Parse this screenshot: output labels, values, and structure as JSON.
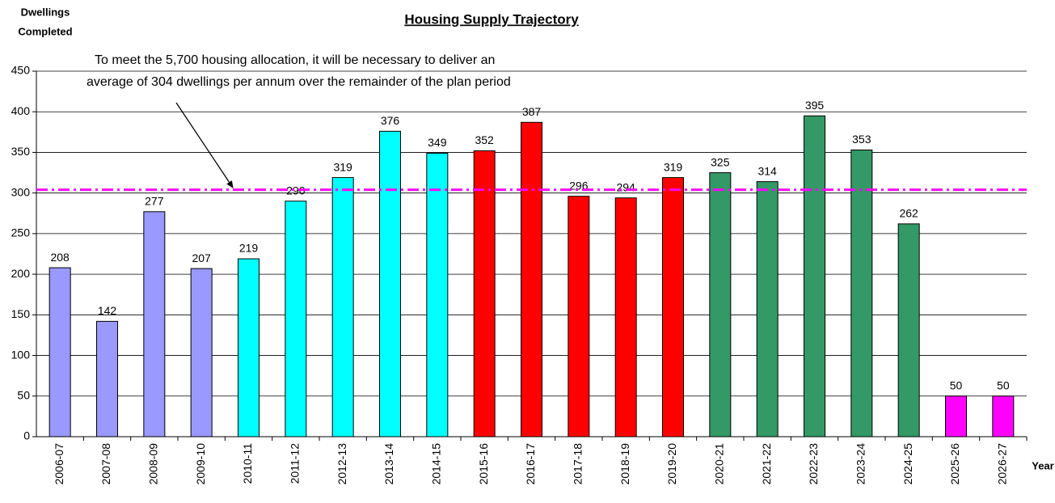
{
  "chart_data": {
    "type": "bar",
    "title": "Housing Supply Trajectory",
    "ylabel": [
      "Dwellings",
      "Completed"
    ],
    "xlabel": "Year",
    "annotation": [
      "To meet the 5,700 housing allocation, it will be necessary to deliver an",
      "average of 304 dwellings per annum over the remainder of the plan period"
    ],
    "categories": [
      "2006-07",
      "2007-08",
      "2008-09",
      "2009-10",
      "2010-11",
      "2011-12",
      "2012-13",
      "2013-14",
      "2014-15",
      "2015-16",
      "2016-17",
      "2017-18",
      "2018-19",
      "2019-20",
      "2020-21",
      "2021-22",
      "2022-23",
      "2023-24",
      "2024-25",
      "2025-26",
      "2026-27"
    ],
    "values": [
      208,
      142,
      277,
      207,
      219,
      290,
      319,
      376,
      349,
      352,
      387,
      296,
      294,
      319,
      325,
      314,
      395,
      353,
      262,
      50,
      50
    ],
    "colors": [
      "#9999ff",
      "#9999ff",
      "#9999ff",
      "#9999ff",
      "#00ffff",
      "#00ffff",
      "#00ffff",
      "#00ffff",
      "#00ffff",
      "#ff0000",
      "#ff0000",
      "#ff0000",
      "#ff0000",
      "#ff0000",
      "#339966",
      "#339966",
      "#339966",
      "#339966",
      "#339966",
      "#ff00ff",
      "#ff00ff"
    ],
    "reference_line": {
      "value": 304,
      "color": "#ff00ff"
    },
    "ylim": [
      0,
      450
    ],
    "yticks": [
      0,
      50,
      100,
      150,
      200,
      250,
      300,
      350,
      400,
      450
    ],
    "grid": true
  }
}
